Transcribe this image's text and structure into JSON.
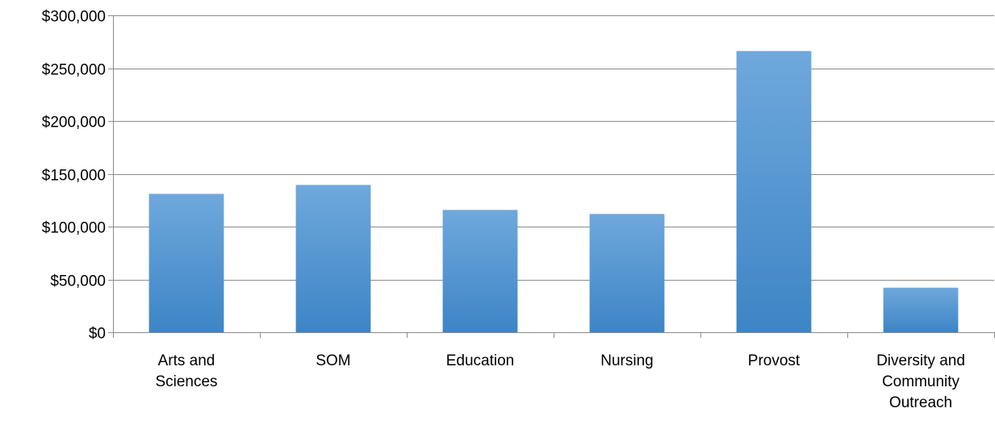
{
  "chart_data": {
    "type": "bar",
    "title": "",
    "xlabel": "",
    "ylabel": "",
    "categories": [
      [
        "Arts and",
        "Sciences"
      ],
      [
        "SOM"
      ],
      [
        "Education"
      ],
      [
        "Nursing"
      ],
      [
        "Provost"
      ],
      [
        "Diversity and",
        "Community",
        "Outreach"
      ]
    ],
    "series": [
      {
        "values": [
          131000,
          139500,
          115800,
          112000,
          266200,
          42200
        ]
      }
    ],
    "ylim": [
      0,
      300000
    ],
    "yticks": [
      0,
      50000,
      100000,
      150000,
      200000,
      250000,
      300000
    ],
    "ytick_labels": [
      "$0",
      "$50,000",
      "$100,000",
      "$150,000",
      "$200,000",
      "$250,000",
      "$300,000"
    ],
    "grid": true,
    "legend": "none",
    "colors": {
      "bar_top": "#6fa8dc",
      "bar_bottom": "#3d85c6",
      "grid": "#8c8c8c",
      "axis": "#8c8c8c"
    }
  }
}
